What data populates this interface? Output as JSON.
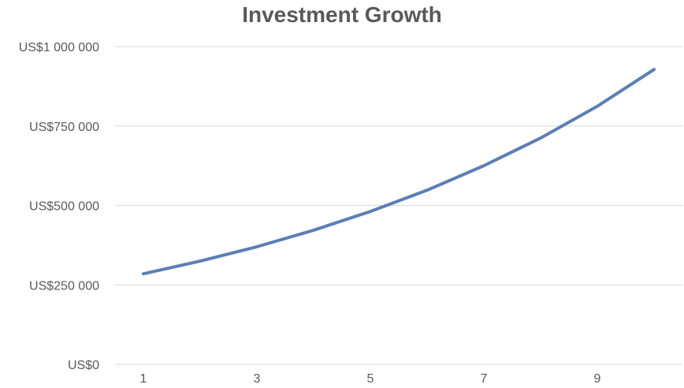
{
  "chart_data": {
    "type": "line",
    "title": "Investment Growth",
    "xlabel": "",
    "ylabel": "",
    "x": [
      1,
      2,
      3,
      4,
      5,
      6,
      7,
      8,
      9,
      10
    ],
    "x_tick_labels": [
      "1",
      "3",
      "5",
      "7",
      "9"
    ],
    "x_tick_values": [
      1,
      3,
      5,
      7,
      9
    ],
    "y_tick_labels": [
      "US$0",
      "US$250 000",
      "US$500 000",
      "US$750 000",
      "US$1 000 000"
    ],
    "y_tick_values": [
      0,
      250000,
      500000,
      750000,
      1000000
    ],
    "ylim": [
      0,
      1000000
    ],
    "grid": true,
    "series": [
      {
        "values": [
          285000,
          325000,
          370000,
          422000,
          481000,
          548000,
          625000,
          712000,
          812000,
          928000
        ],
        "color": "#5b7fb5"
      }
    ]
  }
}
